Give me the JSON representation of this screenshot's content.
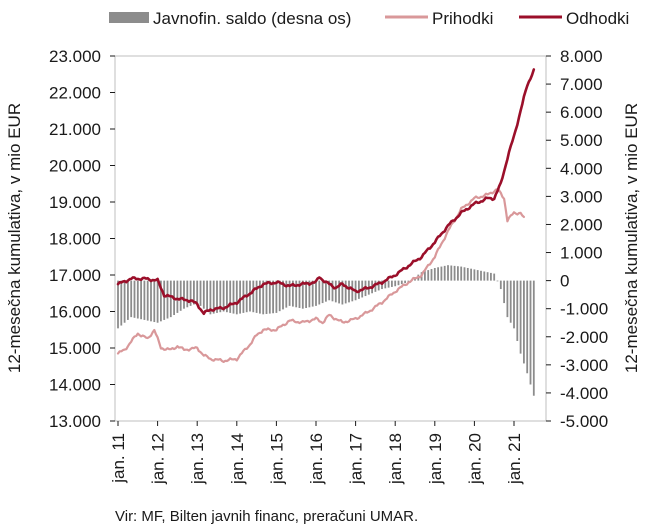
{
  "chart_data": {
    "type": "line",
    "legend": {
      "placement": "top",
      "entries": [
        {
          "label": "Javnofin. saldo (desna os)",
          "color": "#8c8c8c",
          "kind": "bar"
        },
        {
          "label": "Prihodki",
          "color": "#d9989a",
          "kind": "line"
        },
        {
          "label": "Odhodki",
          "color": "#9b0f2a",
          "kind": "line"
        }
      ]
    },
    "y_left": {
      "label": "12-mesečna kumulativa, v mio EUR",
      "ylim": [
        13000,
        23000
      ],
      "ticks": [
        "13.000",
        "14.000",
        "15.000",
        "16.000",
        "17.000",
        "18.000",
        "19.000",
        "20.000",
        "21.000",
        "22.000",
        "23.000"
      ]
    },
    "y_right": {
      "label": "12-mesečna kumulativa, v mio EUR",
      "ylim": [
        -5000,
        8000
      ],
      "ticks": [
        "-5.000",
        "-4.000",
        "-3.000",
        "-2.000",
        "-1.000",
        "0",
        "1.000",
        "2.000",
        "3.000",
        "4.000",
        "5.000",
        "6.000",
        "7.000",
        "8.000"
      ]
    },
    "x": {
      "start_year": 2011,
      "months": 123,
      "tick_labels": [
        "jan. 11",
        "jan. 12",
        "jan. 13",
        "jan. 14",
        "jan. 15",
        "jan. 16",
        "jan. 17",
        "jan. 18",
        "jan. 19",
        "jan. 20",
        "jan. 21"
      ]
    },
    "series": [
      {
        "name": "Prihodki",
        "color": "#d9989a",
        "axis": "left",
        "keypoints": [
          [
            0,
            14850
          ],
          [
            2,
            14950
          ],
          [
            6,
            15400
          ],
          [
            9,
            15250
          ],
          [
            11,
            15500
          ],
          [
            13,
            15000
          ],
          [
            16,
            14950
          ],
          [
            18,
            15050
          ],
          [
            20,
            14950
          ],
          [
            24,
            15000
          ],
          [
            26,
            14800
          ],
          [
            28,
            14700
          ],
          [
            32,
            14650
          ],
          [
            36,
            14700
          ],
          [
            40,
            15100
          ],
          [
            42,
            15350
          ],
          [
            44,
            15500
          ],
          [
            48,
            15500
          ],
          [
            52,
            15750
          ],
          [
            56,
            15700
          ],
          [
            60,
            15800
          ],
          [
            62,
            15700
          ],
          [
            64,
            15900
          ],
          [
            66,
            15800
          ],
          [
            68,
            15700
          ],
          [
            72,
            15800
          ],
          [
            76,
            16000
          ],
          [
            80,
            16250
          ],
          [
            84,
            16550
          ],
          [
            88,
            16800
          ],
          [
            92,
            17000
          ],
          [
            96,
            17500
          ],
          [
            100,
            18200
          ],
          [
            104,
            18800
          ],
          [
            108,
            19100
          ],
          [
            112,
            19200
          ],
          [
            115,
            19350
          ],
          [
            117,
            19100
          ],
          [
            118,
            18500
          ],
          [
            120,
            18700
          ],
          [
            122,
            18700
          ],
          [
            123,
            18550
          ]
        ]
      },
      {
        "name": "Odhodki",
        "color": "#9b0f2a",
        "axis": "left",
        "keypoints": [
          [
            0,
            16750
          ],
          [
            4,
            16900
          ],
          [
            8,
            16900
          ],
          [
            12,
            16850
          ],
          [
            14,
            16450
          ],
          [
            18,
            16350
          ],
          [
            22,
            16300
          ],
          [
            24,
            16200
          ],
          [
            26,
            15950
          ],
          [
            28,
            16050
          ],
          [
            32,
            16100
          ],
          [
            36,
            16250
          ],
          [
            40,
            16500
          ],
          [
            44,
            16750
          ],
          [
            48,
            16800
          ],
          [
            52,
            16700
          ],
          [
            56,
            16750
          ],
          [
            60,
            16800
          ],
          [
            61,
            16950
          ],
          [
            63,
            16800
          ],
          [
            66,
            16650
          ],
          [
            68,
            16750
          ],
          [
            72,
            16550
          ],
          [
            76,
            16650
          ],
          [
            80,
            16800
          ],
          [
            84,
            17000
          ],
          [
            88,
            17250
          ],
          [
            92,
            17500
          ],
          [
            96,
            17900
          ],
          [
            100,
            18350
          ],
          [
            104,
            18700
          ],
          [
            108,
            18950
          ],
          [
            112,
            19100
          ],
          [
            114,
            19100
          ],
          [
            116,
            19500
          ],
          [
            118,
            20200
          ],
          [
            120,
            20800
          ],
          [
            122,
            21500
          ],
          [
            124,
            22200
          ],
          [
            126,
            22600
          ]
        ]
      },
      {
        "name": "Javnofin. saldo (desna os)",
        "color": "#8c8c8c",
        "axis": "right",
        "type": "bar",
        "keypoints": [
          [
            0,
            -1700
          ],
          [
            4,
            -1300
          ],
          [
            8,
            -1400
          ],
          [
            12,
            -1500
          ],
          [
            16,
            -1300
          ],
          [
            20,
            -1000
          ],
          [
            24,
            -800
          ],
          [
            28,
            -1200
          ],
          [
            32,
            -1100
          ],
          [
            36,
            -1200
          ],
          [
            40,
            -1100
          ],
          [
            44,
            -1200
          ],
          [
            48,
            -1150
          ],
          [
            52,
            -900
          ],
          [
            56,
            -1000
          ],
          [
            60,
            -900
          ],
          [
            64,
            -700
          ],
          [
            68,
            -850
          ],
          [
            72,
            -700
          ],
          [
            76,
            -500
          ],
          [
            80,
            -300
          ],
          [
            84,
            -200
          ],
          [
            88,
            -50
          ],
          [
            92,
            300
          ],
          [
            96,
            450
          ],
          [
            100,
            550
          ],
          [
            104,
            500
          ],
          [
            108,
            400
          ],
          [
            112,
            300
          ],
          [
            114,
            250
          ],
          [
            116,
            -300
          ],
          [
            118,
            -1300
          ],
          [
            120,
            -1700
          ],
          [
            122,
            -2600
          ],
          [
            124,
            -3300
          ],
          [
            126,
            -4100
          ]
        ]
      }
    ]
  },
  "source": "Vir: MF, Bilten javnih financ, preračuni UMAR."
}
